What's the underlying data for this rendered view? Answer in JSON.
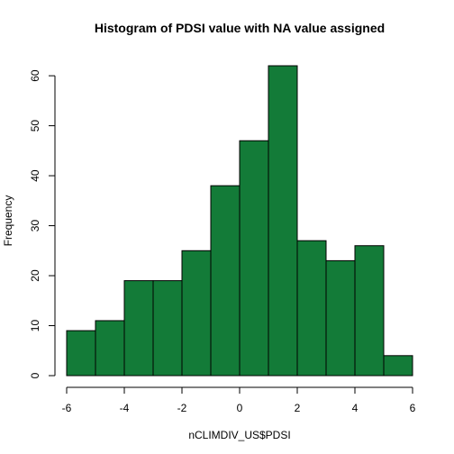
{
  "chart_data": {
    "type": "bar",
    "title": "Histogram of PDSI value with NA value assigned",
    "xlabel": "nCLIMDIV_US$PDSI",
    "ylabel": "Frequency",
    "bins": [
      {
        "x0": -6,
        "x1": -5,
        "count": 9
      },
      {
        "x0": -5,
        "x1": -4,
        "count": 11
      },
      {
        "x0": -4,
        "x1": -3,
        "count": 19
      },
      {
        "x0": -3,
        "x1": -2,
        "count": 19
      },
      {
        "x0": -2,
        "x1": -1,
        "count": 25
      },
      {
        "x0": -1,
        "x1": 0,
        "count": 38
      },
      {
        "x0": 0,
        "x1": 1,
        "count": 47
      },
      {
        "x0": 1,
        "x1": 2,
        "count": 62
      },
      {
        "x0": 2,
        "x1": 3,
        "count": 27
      },
      {
        "x0": 3,
        "x1": 4,
        "count": 23
      },
      {
        "x0": 4,
        "x1": 5,
        "count": 26
      },
      {
        "x0": 5,
        "x1": 6,
        "count": 4
      }
    ],
    "xlim": [
      -6,
      6
    ],
    "ylim": [
      0,
      62
    ],
    "xticks": [
      -6,
      -4,
      -2,
      0,
      2,
      4,
      6
    ],
    "yticks": [
      0,
      10,
      20,
      30,
      40,
      50,
      60
    ],
    "bar_color": "#137b38",
    "grid": false
  }
}
